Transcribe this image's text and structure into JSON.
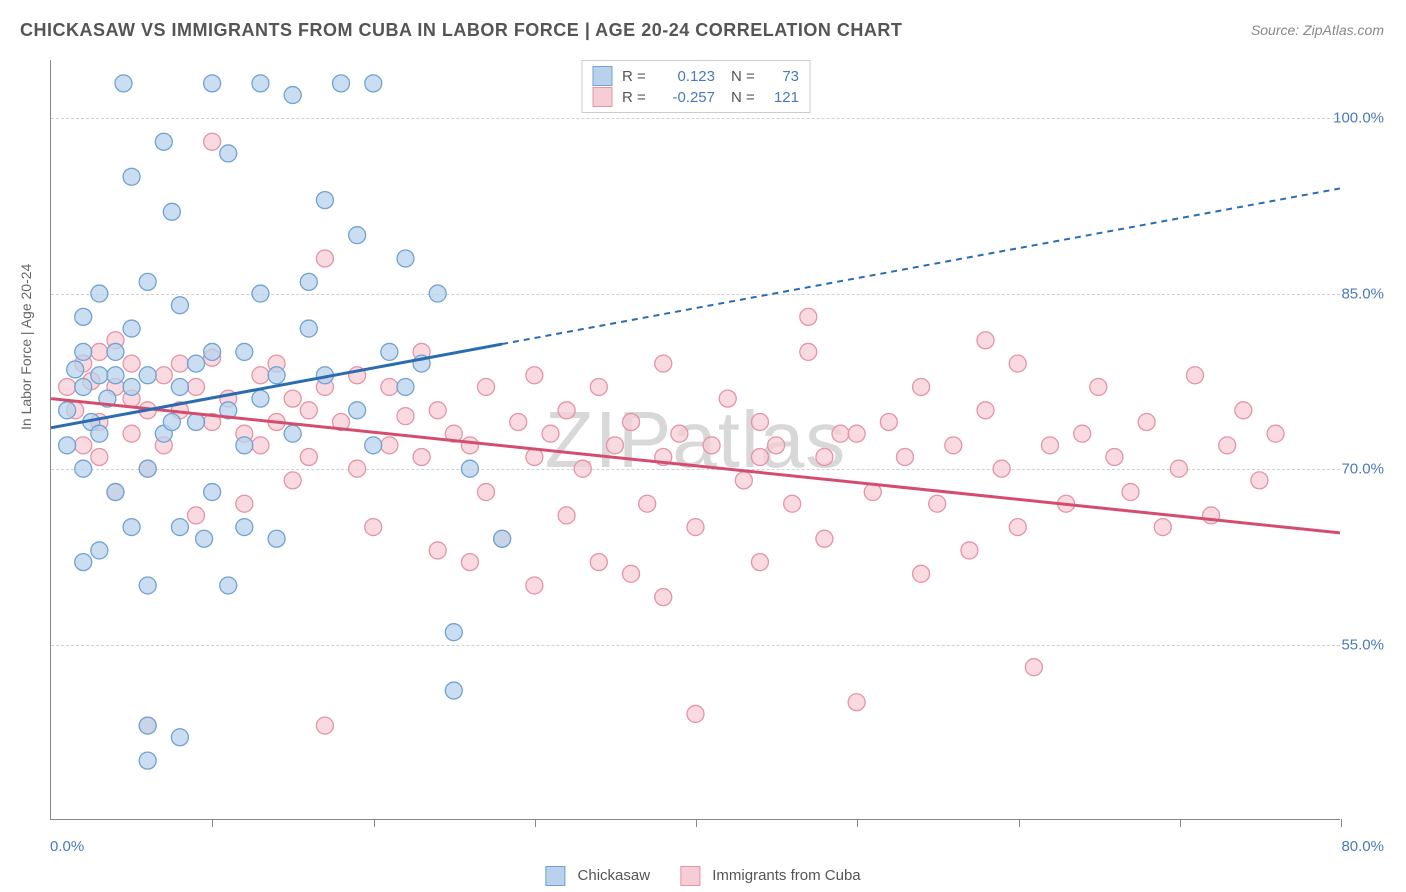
{
  "title": "CHICKASAW VS IMMIGRANTS FROM CUBA IN LABOR FORCE | AGE 20-24 CORRELATION CHART",
  "source": "Source: ZipAtlas.com",
  "y_axis_label": "In Labor Force | Age 20-24",
  "watermark": "ZIPatlas",
  "chart": {
    "type": "scatter",
    "xlim": [
      0,
      80
    ],
    "ylim": [
      40,
      105
    ],
    "y_ticks": [
      55.0,
      70.0,
      85.0,
      100.0
    ],
    "y_tick_labels": [
      "55.0%",
      "70.0%",
      "85.0%",
      "100.0%"
    ],
    "x_ticks": [
      0,
      10,
      20,
      30,
      40,
      50,
      60,
      70,
      80
    ],
    "x_tick_labels_shown": {
      "0": "0.0%",
      "80": "80.0%"
    },
    "grid_color": "#d0d0d0",
    "background_color": "#ffffff",
    "marker_radius": 8.5,
    "marker_stroke_width": 1.3,
    "series": {
      "a": {
        "label": "Chickasaw",
        "fill_color": "#b9d1eb",
        "stroke_color": "#6fa3d4",
        "line_color": "#2b6cb0",
        "line_width": 3,
        "dash": "6,5",
        "trend_line": {
          "x1": 0,
          "y1": 73.5,
          "x2": 80,
          "y2": 94
        },
        "solid_until_x": 28,
        "R": "0.123",
        "N": "73",
        "points": [
          [
            1,
            75
          ],
          [
            1.5,
            78.5
          ],
          [
            2,
            77
          ],
          [
            2,
            80
          ],
          [
            1,
            72
          ],
          [
            2.5,
            74
          ],
          [
            2,
            83
          ],
          [
            3,
            78
          ],
          [
            2,
            70
          ],
          [
            3,
            85
          ],
          [
            3,
            73
          ],
          [
            3.5,
            76
          ],
          [
            3,
            63
          ],
          [
            2,
            62
          ],
          [
            4,
            80
          ],
          [
            4,
            68
          ],
          [
            4,
            78
          ],
          [
            4.5,
            103
          ],
          [
            5,
            77
          ],
          [
            5,
            82
          ],
          [
            5,
            65
          ],
          [
            5,
            95
          ],
          [
            6,
            78
          ],
          [
            6,
            70
          ],
          [
            6,
            86
          ],
          [
            6,
            60
          ],
          [
            7,
            73
          ],
          [
            7,
            98
          ],
          [
            7.5,
            74
          ],
          [
            6,
            45
          ],
          [
            7.5,
            92
          ],
          [
            8,
            65
          ],
          [
            8,
            77
          ],
          [
            8,
            84
          ],
          [
            6,
            48
          ],
          [
            9,
            74
          ],
          [
            9,
            79
          ],
          [
            9.5,
            64
          ],
          [
            10,
            80
          ],
          [
            10,
            68
          ],
          [
            10,
            103
          ],
          [
            11,
            75
          ],
          [
            11,
            60
          ],
          [
            11,
            97
          ],
          [
            12,
            72
          ],
          [
            12,
            80
          ],
          [
            12,
            65
          ],
          [
            13,
            85
          ],
          [
            13,
            76
          ],
          [
            13,
            103
          ],
          [
            14,
            78
          ],
          [
            14,
            64
          ],
          [
            15,
            73
          ],
          [
            15,
            102
          ],
          [
            16,
            82
          ],
          [
            16,
            86
          ],
          [
            17,
            78
          ],
          [
            17,
            93
          ],
          [
            18,
            103
          ],
          [
            19,
            90
          ],
          [
            19,
            75
          ],
          [
            20,
            103
          ],
          [
            20,
            72
          ],
          [
            21,
            80
          ],
          [
            22,
            88
          ],
          [
            22,
            77
          ],
          [
            24,
            85
          ],
          [
            23,
            79
          ],
          [
            25,
            56
          ],
          [
            26,
            70
          ],
          [
            25,
            51
          ],
          [
            28,
            64
          ],
          [
            8,
            47
          ]
        ]
      },
      "b": {
        "label": "Immigrants from Cuba",
        "fill_color": "#f7cdd5",
        "stroke_color": "#e494a5",
        "line_color": "#d44d6e",
        "line_width": 3,
        "dash": "none",
        "trend_line": {
          "x1": 0,
          "y1": 76,
          "x2": 80,
          "y2": 64.5
        },
        "R": "-0.257",
        "N": "121",
        "points": [
          [
            1,
            77
          ],
          [
            1.5,
            75
          ],
          [
            2,
            79
          ],
          [
            2,
            72
          ],
          [
            2.5,
            77.5
          ],
          [
            3,
            80
          ],
          [
            3,
            74
          ],
          [
            3,
            71
          ],
          [
            4,
            77
          ],
          [
            4,
            68
          ],
          [
            4,
            81
          ],
          [
            5,
            76
          ],
          [
            5,
            73
          ],
          [
            5,
            79
          ],
          [
            6,
            75
          ],
          [
            6,
            70
          ],
          [
            6,
            48
          ],
          [
            7,
            78
          ],
          [
            7,
            72
          ],
          [
            8,
            75
          ],
          [
            8,
            79
          ],
          [
            9,
            77
          ],
          [
            9,
            66
          ],
          [
            10,
            74
          ],
          [
            10,
            79.5
          ],
          [
            10,
            98
          ],
          [
            11,
            76
          ],
          [
            12,
            73
          ],
          [
            12,
            67
          ],
          [
            13,
            78
          ],
          [
            13,
            72
          ],
          [
            14,
            74
          ],
          [
            14,
            79
          ],
          [
            15,
            76
          ],
          [
            15,
            69
          ],
          [
            16,
            75
          ],
          [
            16,
            71
          ],
          [
            17,
            77
          ],
          [
            17,
            88
          ],
          [
            17,
            48
          ],
          [
            18,
            74
          ],
          [
            19,
            70
          ],
          [
            19,
            78
          ],
          [
            20,
            65
          ],
          [
            21,
            72
          ],
          [
            21,
            77
          ],
          [
            22,
            74.5
          ],
          [
            23,
            71
          ],
          [
            23,
            80
          ],
          [
            24,
            75
          ],
          [
            25,
            73
          ],
          [
            24,
            63
          ],
          [
            26,
            72
          ],
          [
            27,
            68
          ],
          [
            27,
            77
          ],
          [
            28,
            64
          ],
          [
            29,
            74
          ],
          [
            30,
            71
          ],
          [
            30,
            78
          ],
          [
            31,
            73
          ],
          [
            32,
            66
          ],
          [
            32,
            75
          ],
          [
            33,
            70
          ],
          [
            34,
            77
          ],
          [
            35,
            72
          ],
          [
            34,
            62
          ],
          [
            36,
            74
          ],
          [
            37,
            67
          ],
          [
            38,
            71
          ],
          [
            38,
            79
          ],
          [
            39,
            73
          ],
          [
            40,
            65
          ],
          [
            40,
            49
          ],
          [
            41,
            72
          ],
          [
            42,
            76
          ],
          [
            43,
            69
          ],
          [
            44,
            74
          ],
          [
            44,
            62
          ],
          [
            45,
            72
          ],
          [
            46,
            67
          ],
          [
            47,
            80
          ],
          [
            48,
            71
          ],
          [
            48,
            64
          ],
          [
            49,
            73
          ],
          [
            50,
            50
          ],
          [
            51,
            68
          ],
          [
            52,
            74
          ],
          [
            53,
            71
          ],
          [
            54,
            77
          ],
          [
            55,
            67
          ],
          [
            56,
            72
          ],
          [
            57,
            63
          ],
          [
            58,
            75
          ],
          [
            59,
            70
          ],
          [
            60,
            79
          ],
          [
            60,
            65
          ],
          [
            61,
            53
          ],
          [
            62,
            72
          ],
          [
            63,
            67
          ],
          [
            64,
            73
          ],
          [
            65,
            77
          ],
          [
            66,
            71
          ],
          [
            67,
            68
          ],
          [
            68,
            74
          ],
          [
            69,
            65
          ],
          [
            70,
            70
          ],
          [
            71,
            78
          ],
          [
            72,
            66
          ],
          [
            73,
            72
          ],
          [
            74,
            75
          ],
          [
            75,
            69
          ],
          [
            76,
            73
          ],
          [
            58,
            81
          ],
          [
            47,
            83
          ],
          [
            36,
            61
          ],
          [
            30,
            60
          ],
          [
            26,
            62
          ],
          [
            44,
            71
          ],
          [
            54,
            61
          ],
          [
            38,
            59
          ],
          [
            50,
            73
          ]
        ]
      }
    }
  },
  "legend_top": {
    "r_label": "R =",
    "n_label": "N ="
  },
  "title_fontsize": 18,
  "source_fontsize": 14,
  "label_fontsize": 14,
  "tick_fontsize": 15,
  "watermark_fontsize": 80
}
